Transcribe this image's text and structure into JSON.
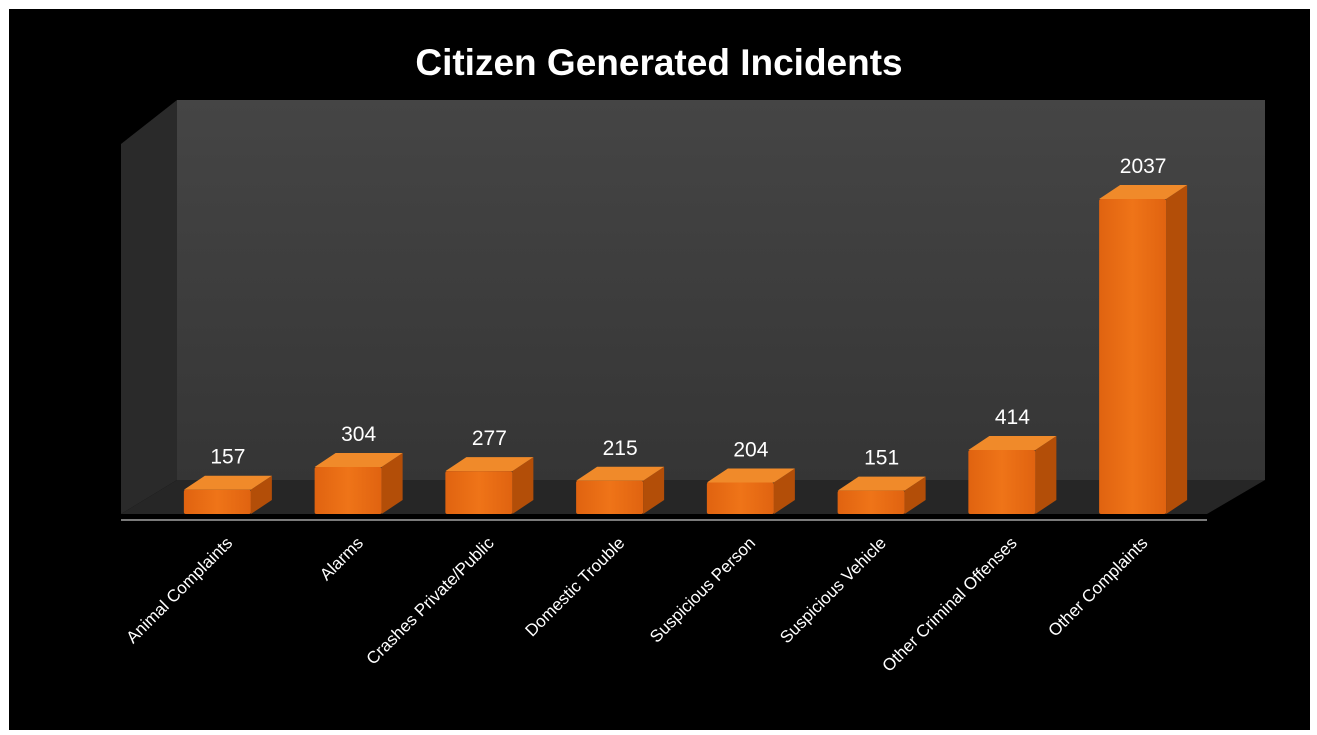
{
  "chart_data": {
    "type": "bar",
    "title": "Citizen Generated Incidents",
    "categories": [
      "Animal Complaints",
      "Alarms",
      "Crashes Private/Public",
      "Domestic Trouble",
      "Suspicious Person",
      "Suspicious Vehicle",
      "Other Criminal Offenses",
      "Other Complaints"
    ],
    "values": [
      157,
      304,
      277,
      215,
      204,
      151,
      414,
      2037
    ],
    "style": "3d-column",
    "grid": false,
    "legend": "none",
    "colors": {
      "background": "#000000",
      "back_wall": "#3a3a3a",
      "side_wall": "#2a2a2a",
      "floor": "#262626",
      "bar_front": "#e8690f",
      "bar_top": "#f08a2a",
      "bar_side": "#b34e08",
      "text": "#ffffff"
    }
  }
}
